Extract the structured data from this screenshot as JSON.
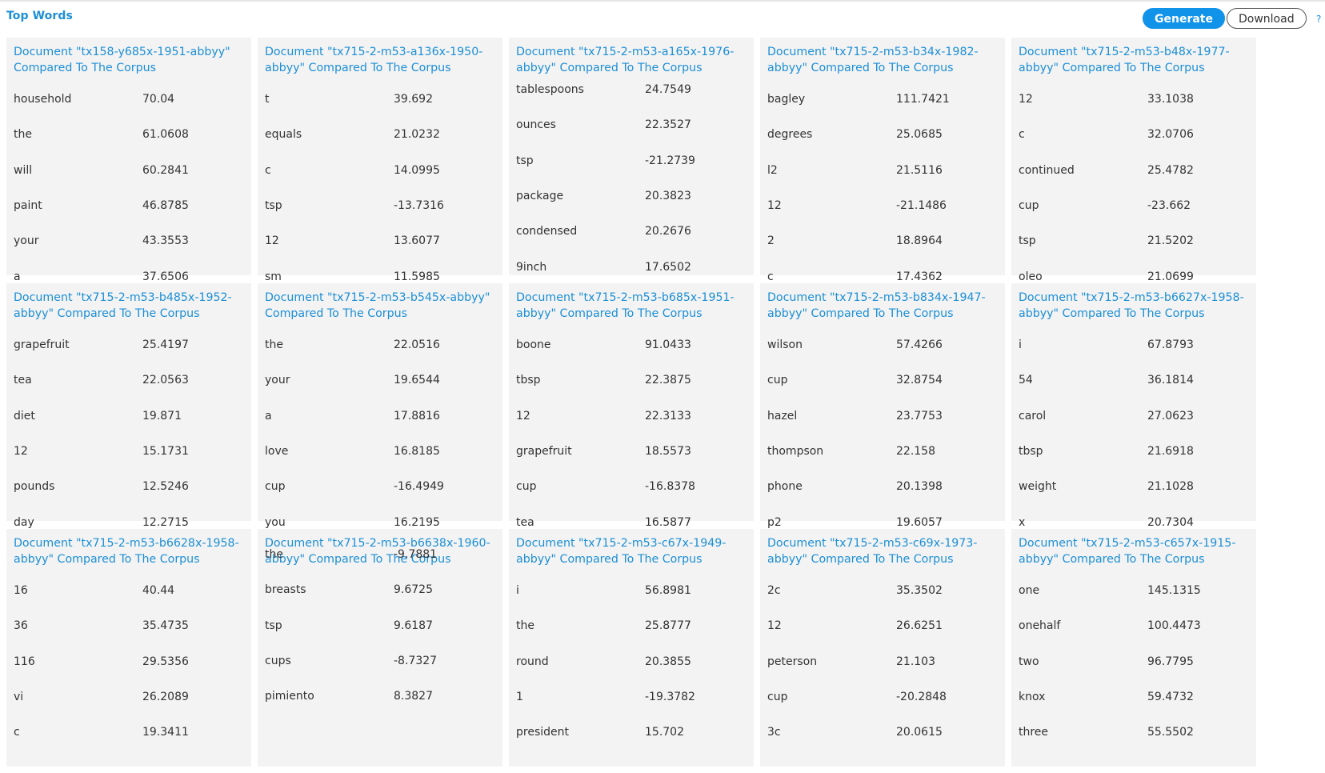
{
  "header": {
    "title": "Top Words",
    "generate_label": "Generate",
    "download_label": "Download",
    "help_label": "?"
  },
  "panels": [
    {
      "title": "Document \"tx158-y685x-1951-abbyy\" Compared To The Corpus",
      "offset": 0,
      "rows": [
        [
          "household",
          "70.04"
        ],
        [
          "the",
          "61.0608"
        ],
        [
          "will",
          "60.2841"
        ],
        [
          "paint",
          "46.8785"
        ],
        [
          "your",
          "43.3553"
        ],
        [
          "a",
          "37.6506"
        ]
      ]
    },
    {
      "title": "Document \"tx715-2-m53-a136x-1950-abbyy\" Compared To The Corpus",
      "offset": 0,
      "rows": [
        [
          "t",
          "39.692"
        ],
        [
          "equals",
          "21.0232"
        ],
        [
          "c",
          "14.0995"
        ],
        [
          "tsp",
          "-13.7316"
        ],
        [
          "12",
          "13.6077"
        ],
        [
          "sm",
          "11.5985"
        ]
      ]
    },
    {
      "title": "Document \"tx715-2-m53-a165x-1976-abbyy\" Compared To The Corpus",
      "offset": -12,
      "rows": [
        [
          "tablespoons",
          "24.7549"
        ],
        [
          "ounces",
          "22.3527"
        ],
        [
          "tsp",
          "-21.2739"
        ],
        [
          "package",
          "20.3823"
        ],
        [
          "condensed",
          "20.2676"
        ],
        [
          "9inch",
          "17.6502"
        ]
      ]
    },
    {
      "title": "Document \"tx715-2-m53-b34x-1982-abbyy\" Compared To The Corpus",
      "offset": 0,
      "rows": [
        [
          "bagley",
          "111.7421"
        ],
        [
          "degrees",
          "25.0685"
        ],
        [
          "l2",
          "21.5116"
        ],
        [
          "12",
          "-21.1486"
        ],
        [
          "2",
          "18.8964"
        ],
        [
          "c",
          "17.4362"
        ]
      ]
    },
    {
      "title": "Document \"tx715-2-m53-b48x-1977-abbyy\" Compared To The Corpus",
      "offset": 0,
      "rows": [
        [
          "12",
          "33.1038"
        ],
        [
          "c",
          "32.0706"
        ],
        [
          "continued",
          "25.4782"
        ],
        [
          "cup",
          "-23.662"
        ],
        [
          "tsp",
          "21.5202"
        ],
        [
          "oleo",
          "21.0699"
        ]
      ]
    },
    {
      "title": "Document \"tx715-2-m53-b485x-1952-abbyy\" Compared To The Corpus",
      "offset": 0,
      "rows": [
        [
          "grapefruit",
          "25.4197"
        ],
        [
          "tea",
          "22.0563"
        ],
        [
          "diet",
          "19.871"
        ],
        [
          "12",
          "15.1731"
        ],
        [
          "pounds",
          "12.5246"
        ],
        [
          "day",
          "12.2715"
        ]
      ]
    },
    {
      "title": "Document \"tx715-2-m53-b545x-abbyy\" Compared To The Corpus",
      "offset": 0,
      "rows": [
        [
          "the",
          "22.0516"
        ],
        [
          "your",
          "19.6544"
        ],
        [
          "a",
          "17.8816"
        ],
        [
          "love",
          "16.8185"
        ],
        [
          "cup",
          "-16.4949"
        ],
        [
          "you",
          "16.2195"
        ]
      ]
    },
    {
      "title": "Document \"tx715-2-m53-b685x-1951-abbyy\" Compared To The Corpus",
      "offset": 0,
      "rows": [
        [
          "boone",
          "91.0433"
        ],
        [
          "tbsp",
          "22.3875"
        ],
        [
          "12",
          "22.3133"
        ],
        [
          "grapefruit",
          "18.5573"
        ],
        [
          "cup",
          "-16.8378"
        ],
        [
          "tea",
          "16.5877"
        ]
      ]
    },
    {
      "title": "Document \"tx715-2-m53-b834x-1947-abbyy\" Compared To The Corpus",
      "offset": 0,
      "rows": [
        [
          "wilson",
          "57.4266"
        ],
        [
          "cup",
          "32.8754"
        ],
        [
          "hazel",
          "23.7753"
        ],
        [
          "thompson",
          "22.158"
        ],
        [
          "phone",
          "20.1398"
        ],
        [
          "p2",
          "19.6057"
        ]
      ]
    },
    {
      "title": "Document \"tx715-2-m53-b6627x-1958-abbyy\" Compared To The Corpus",
      "offset": 0,
      "rows": [
        [
          "i",
          "67.8793"
        ],
        [
          "54",
          "36.1814"
        ],
        [
          "carol",
          "27.0623"
        ],
        [
          "tbsp",
          "21.6918"
        ],
        [
          "weight",
          "21.1028"
        ],
        [
          "x",
          "20.7304"
        ]
      ]
    },
    {
      "title": "Document \"tx715-2-m53-b6628x-1958-abbyy\" Compared To The Corpus",
      "offset": 0,
      "rows": [
        [
          "16",
          "40.44"
        ],
        [
          "36",
          "35.4735"
        ],
        [
          "116",
          "29.5356"
        ],
        [
          "vi",
          "26.2089"
        ],
        [
          "c",
          "19.3411"
        ]
      ]
    },
    {
      "title": "Document \"tx715-2-m53-b6638x-1960-abbyy\" Compared To The Corpus",
      "offset": -45,
      "rows": [
        [
          "the",
          "-9.7881"
        ],
        [
          "breasts",
          "9.6725"
        ],
        [
          "tsp",
          "9.6187"
        ],
        [
          "cups",
          "-8.7327"
        ],
        [
          "pimiento",
          "8.3827"
        ]
      ]
    },
    {
      "title": "Document \"tx715-2-m53-c67x-1949-abbyy\" Compared To The Corpus",
      "offset": 0,
      "rows": [
        [
          "i",
          "56.8981"
        ],
        [
          "the",
          "25.8777"
        ],
        [
          "round",
          "20.3855"
        ],
        [
          "1",
          "-19.3782"
        ],
        [
          "president",
          "15.702"
        ]
      ]
    },
    {
      "title": "Document \"tx715-2-m53-c69x-1973-abbyy\" Compared To The Corpus",
      "offset": 0,
      "rows": [
        [
          "2c",
          "35.3502"
        ],
        [
          "12",
          "26.6251"
        ],
        [
          "peterson",
          "21.103"
        ],
        [
          "cup",
          "-20.2848"
        ],
        [
          "3c",
          "20.0615"
        ]
      ]
    },
    {
      "title": "Document \"tx715-2-m53-c657x-1915-abbyy\" Compared To The Corpus",
      "offset": 0,
      "rows": [
        [
          "one",
          "145.1315"
        ],
        [
          "onehalf",
          "100.4473"
        ],
        [
          "two",
          "96.7795"
        ],
        [
          "knox",
          "59.4732"
        ],
        [
          "three",
          "55.5502"
        ]
      ]
    }
  ]
}
